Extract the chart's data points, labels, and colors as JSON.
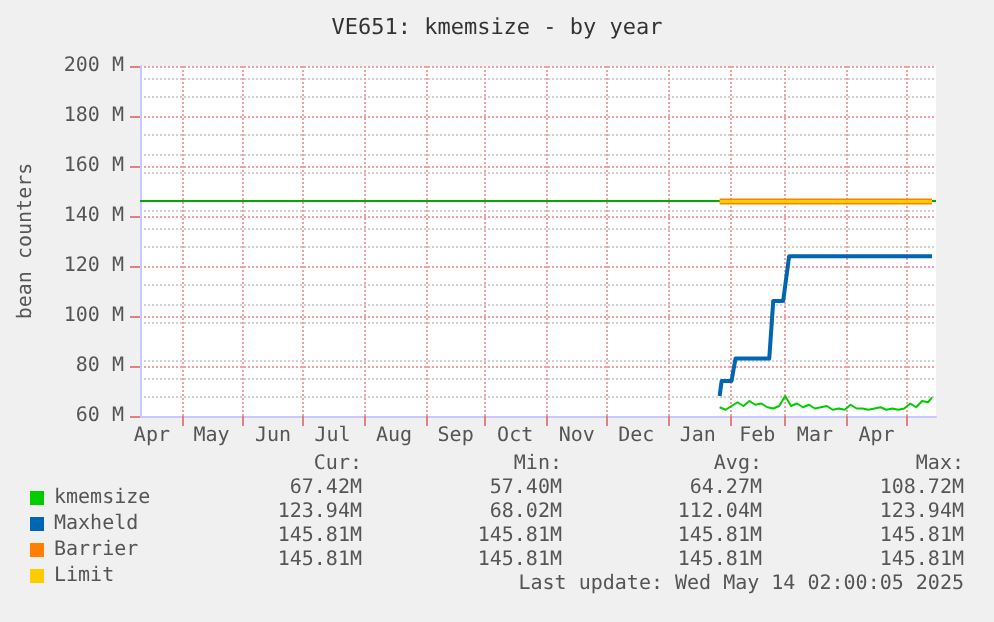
{
  "chart_data": {
    "type": "line",
    "title": "VE651: kmemsize - by year",
    "ylabel": "bean counters",
    "xlim": [
      "2024-04-10",
      "2025-05-16"
    ],
    "xticks": [
      {
        "value": "2024-04-16",
        "label": "Apr"
      },
      {
        "value": "2024-05-01",
        "label": null
      },
      {
        "value": "2024-05-16",
        "label": "May"
      },
      {
        "value": "2024-06-01",
        "label": null
      },
      {
        "value": "2024-06-16",
        "label": "Jun"
      },
      {
        "value": "2024-07-01",
        "label": null
      },
      {
        "value": "2024-07-16",
        "label": "Jul"
      },
      {
        "value": "2024-08-01",
        "label": null
      },
      {
        "value": "2024-08-16",
        "label": "Aug"
      },
      {
        "value": "2024-09-01",
        "label": null
      },
      {
        "value": "2024-09-16",
        "label": "Sep"
      },
      {
        "value": "2024-10-01",
        "label": null
      },
      {
        "value": "2024-10-16",
        "label": "Oct"
      },
      {
        "value": "2024-11-01",
        "label": null
      },
      {
        "value": "2024-11-16",
        "label": "Nov"
      },
      {
        "value": "2024-12-01",
        "label": null
      },
      {
        "value": "2024-12-16",
        "label": "Dec"
      },
      {
        "value": "2025-01-01",
        "label": null
      },
      {
        "value": "2025-01-16",
        "label": "Jan"
      },
      {
        "value": "2025-02-01",
        "label": null
      },
      {
        "value": "2025-02-15",
        "label": "Feb"
      },
      {
        "value": "2025-03-01",
        "label": null
      },
      {
        "value": "2025-03-16",
        "label": "Mar"
      },
      {
        "value": "2025-04-01",
        "label": null
      },
      {
        "value": "2025-04-16",
        "label": "Apr"
      },
      {
        "value": "2025-05-01",
        "label": null
      }
    ],
    "ylim": [
      60,
      200
    ],
    "yticks": [
      {
        "value": 60,
        "label": "60 M"
      },
      {
        "value": 80,
        "label": "80 M"
      },
      {
        "value": 100,
        "label": "100 M"
      },
      {
        "value": 120,
        "label": "120 M"
      },
      {
        "value": 140,
        "label": "140 M"
      },
      {
        "value": 160,
        "label": "160 M"
      },
      {
        "value": 180,
        "label": "180 M"
      },
      {
        "value": 200,
        "label": "200 M"
      }
    ],
    "grid": true,
    "legend": "bottom left",
    "marker": "none",
    "line_style": "solid",
    "ref_lines": [
      {
        "axis": "y",
        "value": 145.81,
        "color": "#00aa00"
      }
    ],
    "series": [
      {
        "name": "kmemsize",
        "color": "#00cc00",
        "x": [
          "2025-01-27",
          "2025-01-30",
          "2025-02-02",
          "2025-02-05",
          "2025-02-08",
          "2025-02-11",
          "2025-02-14",
          "2025-02-17",
          "2025-02-20",
          "2025-02-23",
          "2025-02-26",
          "2025-03-01",
          "2025-03-04",
          "2025-03-07",
          "2025-03-10",
          "2025-03-13",
          "2025-03-16",
          "2025-03-19",
          "2025-03-22",
          "2025-03-25",
          "2025-03-28",
          "2025-03-31",
          "2025-04-03",
          "2025-04-06",
          "2025-04-09",
          "2025-04-12",
          "2025-04-15",
          "2025-04-18",
          "2025-04-21",
          "2025-04-24",
          "2025-04-27",
          "2025-04-30",
          "2025-05-03",
          "2025-05-06",
          "2025-05-09",
          "2025-05-12",
          "2025-05-14"
        ],
        "values": [
          63.5,
          62.5,
          64,
          65.5,
          64,
          66,
          64.5,
          65,
          63.5,
          63,
          64,
          68,
          64,
          65,
          63.5,
          64.5,
          63,
          63.5,
          64,
          62.5,
          63,
          62.5,
          64.5,
          63,
          63,
          62.5,
          63,
          63.5,
          62.5,
          63,
          62.5,
          63,
          65,
          63.5,
          66,
          65.5,
          67.42
        ]
      },
      {
        "name": "Maxheld",
        "color": "#0066b3",
        "x": [
          "2025-01-27",
          "2025-01-28",
          "2025-02-02",
          "2025-02-04",
          "2025-02-21",
          "2025-02-23",
          "2025-02-28",
          "2025-03-03",
          "2025-05-14"
        ],
        "values": [
          68.02,
          74,
          74,
          83,
          83,
          106,
          106,
          123.94,
          123.94
        ]
      },
      {
        "name": "Barrier",
        "color": "#ff8000",
        "x": [
          "2025-01-27",
          "2025-05-14"
        ],
        "values": [
          145.81,
          145.81
        ]
      },
      {
        "name": "Limit",
        "color": "#ffcc00",
        "x": [
          "2025-01-27",
          "2025-05-14"
        ],
        "values": [
          145.81,
          145.81
        ]
      }
    ],
    "annotations": [
      "Cur:",
      "Min:",
      "Avg:",
      "Max:",
      "67.42M",
      "57.40M",
      "64.27M",
      "108.72M",
      "123.94M",
      "68.02M",
      "112.04M",
      "123.94M",
      "145.81M",
      "145.81M",
      "145.81M",
      "145.81M",
      "145.81M",
      "145.81M",
      "145.81M",
      "145.81M",
      "Last update: Wed May 14 02:00:05 2025"
    ]
  }
}
